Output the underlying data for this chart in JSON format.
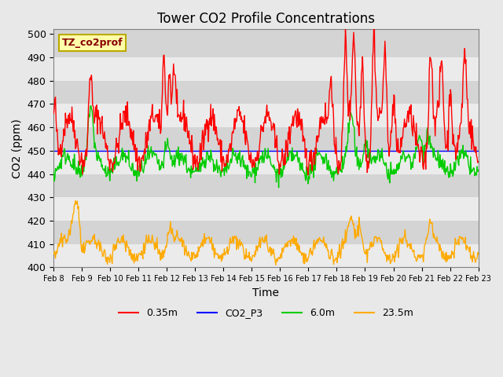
{
  "title": "Tower CO2 Profile Concentrations",
  "xlabel": "Time",
  "ylabel": "CO2 (ppm)",
  "ylim": [
    400,
    502
  ],
  "yticks": [
    400,
    410,
    420,
    430,
    440,
    450,
    460,
    470,
    480,
    490,
    500
  ],
  "date_labels": [
    "Feb 8",
    "Feb 9",
    "Feb 10",
    "Feb 11",
    "Feb 12",
    "Feb 13",
    "Feb 14",
    "Feb 15",
    "Feb 16",
    "Feb 17",
    "Feb 18",
    "Feb 19",
    "Feb 20",
    "Feb 21",
    "Feb 22",
    "Feb 23"
  ],
  "n_days": 15,
  "pts_per_day": 48,
  "series_colors": {
    "0.35m": "#ff0000",
    "CO2_P3": "#0000ff",
    "6.0m": "#00cc00",
    "23.5m": "#ffaa00"
  },
  "bg_color": "#e8e8e8",
  "plot_bg": "#d4d4d4",
  "annotation_text": "TZ_co2prof",
  "annotation_bg": "#ffffaa",
  "annotation_edge": "#bbaa00"
}
